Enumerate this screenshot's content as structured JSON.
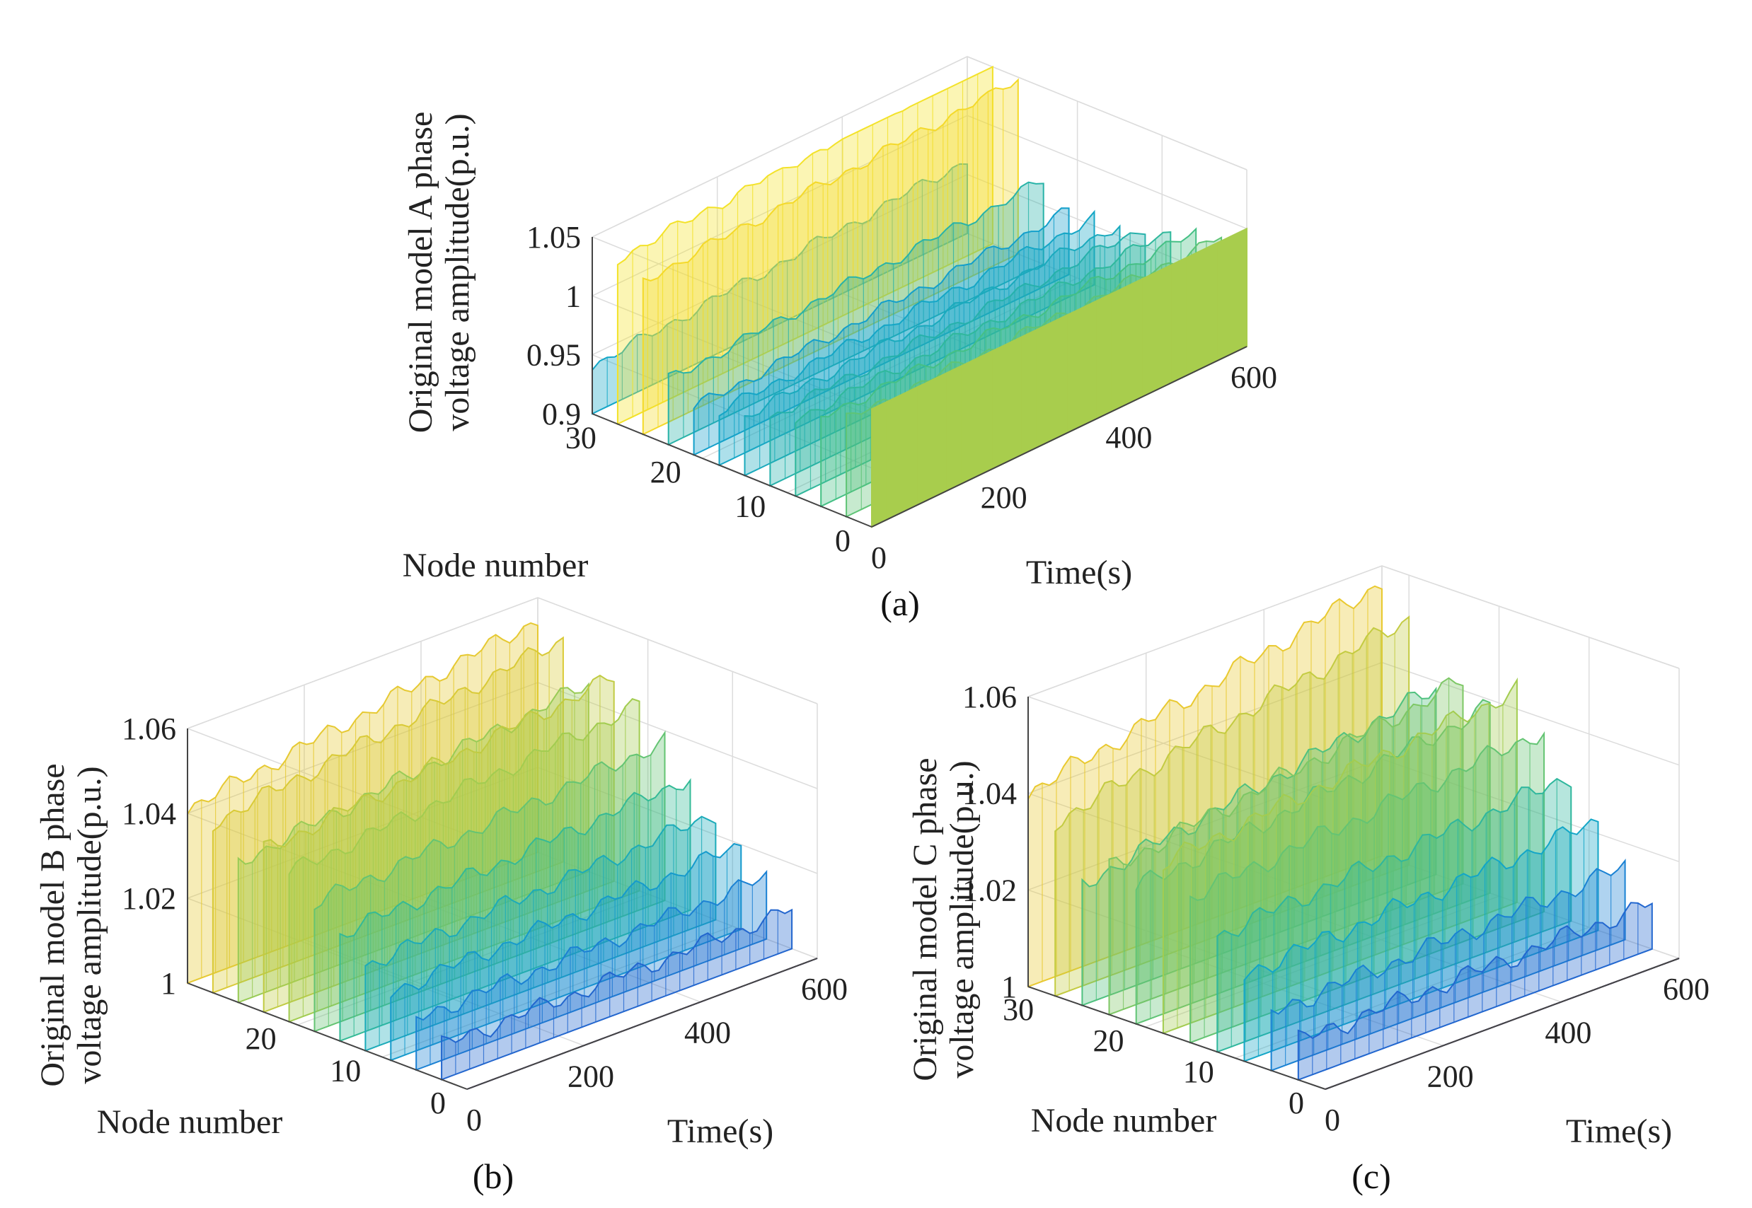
{
  "chart_data": [
    {
      "id": "a",
      "type": "surface3d",
      "caption": "(a)",
      "title": "",
      "zlabel_line1": "Original model A phase",
      "zlabel_line2": "voltage amplitude(p.u.)",
      "xlabel": "Time(s)",
      "ylabel": "Node number",
      "xlim": [
        0,
        600
      ],
      "ylim": [
        0,
        33
      ],
      "zlim": [
        0.9,
        1.05
      ],
      "xticks": [
        "0",
        "200",
        "400",
        "600"
      ],
      "yticks": [
        "0",
        "10",
        "20",
        "30"
      ],
      "zticks": [
        "0.9",
        "0.95",
        "1",
        "1.05"
      ],
      "nodes": [
        0,
        3,
        6,
        9,
        12,
        15,
        18,
        21,
        24,
        27,
        30,
        33
      ],
      "base_profile": [
        1.0,
        0.982,
        0.975,
        0.965,
        0.958,
        0.95,
        0.945,
        0.94,
        0.955,
        1.03,
        1.04,
        0.94
      ],
      "drift_per_100s": 0.004,
      "colormap": [
        "#3a2a8c",
        "#1f6fd8",
        "#12a5c9",
        "#3cbf8a",
        "#a8cd4d",
        "#f7c82a",
        "#f2e629"
      ]
    },
    {
      "id": "b",
      "type": "surface3d",
      "caption": "(b)",
      "title": "",
      "zlabel_line1": "Original model B phase",
      "zlabel_line2": "voltage amplitude(p.u.)",
      "xlabel": "Time(s)",
      "ylabel": "Node number",
      "xlim": [
        0,
        600
      ],
      "ylim": [
        0,
        33
      ],
      "zlim": [
        1.0,
        1.06
      ],
      "xticks": [
        "0",
        "200",
        "400",
        "600"
      ],
      "yticks": [
        "0",
        "10",
        "20"
      ],
      "zticks": [
        "1",
        "1.02",
        "1.04",
        "1.06"
      ],
      "nodes": [
        0,
        3,
        6,
        9,
        12,
        15,
        18,
        21,
        24,
        27,
        30,
        33
      ],
      "base_profile": [
        1.0,
        1.008,
        1.012,
        1.016,
        1.02,
        1.025,
        1.03,
        1.035,
        1.038,
        1.033,
        1.04,
        1.041
      ],
      "drift_per_100s": 0.0025,
      "colormap": [
        "#3a2a8c",
        "#1f6fd8",
        "#12a5c9",
        "#3cbf8a",
        "#a8cd4d",
        "#f7c82a",
        "#f2e629"
      ]
    },
    {
      "id": "c",
      "type": "surface3d",
      "caption": "(c)",
      "title": "",
      "zlabel_line1": "Original model C phase",
      "zlabel_line2": "voltage amplitude(p.u.)",
      "xlabel": "Time(s)",
      "ylabel": "Node number",
      "xlim": [
        0,
        600
      ],
      "ylim": [
        0,
        33
      ],
      "zlim": [
        1.0,
        1.06
      ],
      "xticks": [
        "0",
        "200",
        "400",
        "600"
      ],
      "yticks": [
        "0",
        "10",
        "20",
        "30"
      ],
      "zticks": [
        "1",
        "1.02",
        "1.04",
        "1.06"
      ],
      "nodes": [
        0,
        3,
        6,
        9,
        12,
        15,
        18,
        21,
        24,
        27,
        30,
        33
      ],
      "base_profile": [
        1.0,
        1.008,
        1.012,
        1.018,
        1.024,
        1.03,
        1.035,
        1.028,
        1.03,
        1.025,
        1.036,
        1.04
      ],
      "drift_per_100s": 0.003,
      "colormap": [
        "#3a2a8c",
        "#1f6fd8",
        "#12a5c9",
        "#3cbf8a",
        "#a8cd4d",
        "#f7c82a",
        "#f2e629"
      ]
    }
  ]
}
